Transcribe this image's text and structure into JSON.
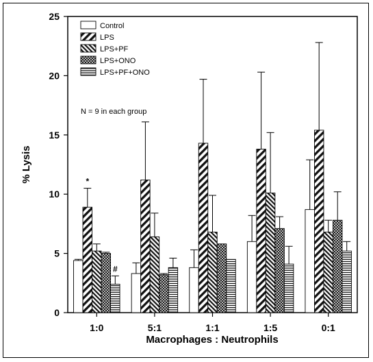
{
  "chart_data": {
    "type": "bar",
    "title": "",
    "xlabel": "Macrophages : Neutrophils",
    "ylabel": "% Lysis",
    "ylim": [
      0,
      25
    ],
    "yticks": [
      0,
      5,
      10,
      15,
      20,
      25
    ],
    "categories": [
      "1:0",
      "5:1",
      "1:1",
      "1:5",
      "0:1"
    ],
    "series": [
      {
        "name": "Control",
        "fill": "white",
        "values": [
          4.4,
          3.3,
          3.8,
          6.0,
          8.7
        ],
        "errors": [
          0.1,
          0.9,
          1.5,
          2.2,
          4.2
        ]
      },
      {
        "name": "LPS",
        "fill": "diag-wide",
        "values": [
          8.9,
          11.2,
          14.3,
          13.8,
          15.4
        ],
        "errors": [
          1.6,
          4.9,
          5.4,
          6.5,
          7.4
        ]
      },
      {
        "name": "LPS+PF",
        "fill": "diag-dense",
        "values": [
          5.2,
          6.4,
          6.8,
          10.1,
          6.8
        ],
        "errors": [
          0.6,
          2.0,
          3.1,
          5.1,
          1.0
        ]
      },
      {
        "name": "LPS+ONO",
        "fill": "checker",
        "values": [
          5.0,
          3.2,
          5.8,
          7.1,
          7.8
        ],
        "errors": [
          0.1,
          0.1,
          0.0,
          1.0,
          2.4
        ]
      },
      {
        "name": "LPS+PF+ONO",
        "fill": "horiz",
        "values": [
          2.4,
          3.8,
          4.5,
          4.1,
          5.2
        ],
        "errors": [
          0.7,
          0.8,
          0.0,
          1.5,
          0.8
        ]
      }
    ],
    "annotations": [
      {
        "text": "*",
        "category": "1:0",
        "series": "LPS"
      },
      {
        "text": "#",
        "category": "1:0",
        "series": "LPS+PF+ONO"
      }
    ],
    "note": "N = 9 in each group",
    "legend_position": "top-left",
    "grid": false
  }
}
